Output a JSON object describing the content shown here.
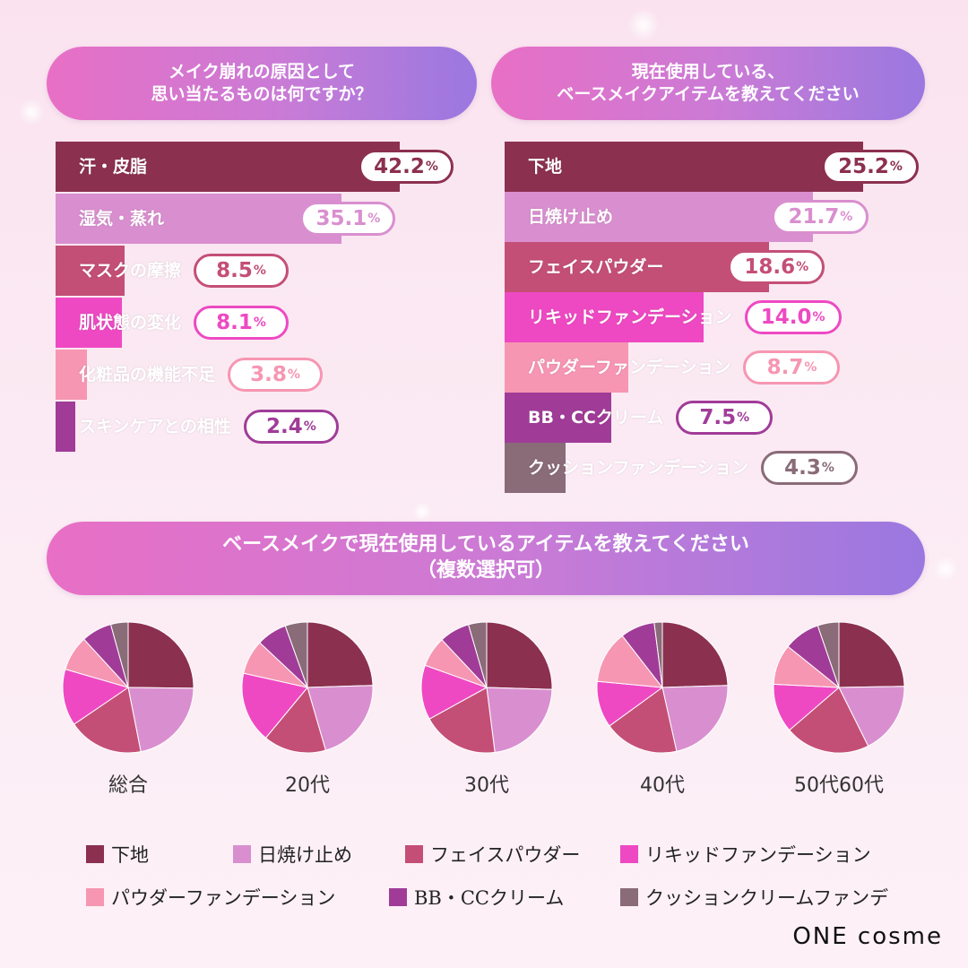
{
  "colors": {
    "下地": "#8c3050",
    "日焼け止め": "#d98fcf",
    "フェイスパウダー": "#c44f76",
    "リキッドファンデーション": "#ee49c3",
    "パウダーファンデーション": "#f696b2",
    "BB・CCクリーム": "#a03c98",
    "クッションファンデーション": "#8a6b78"
  },
  "header_left": {
    "line1": "メイク崩れの原因として",
    "line2": "思い当たるものは何ですか？"
  },
  "header_right": {
    "line1": "現在使用している、",
    "line2": "ベースメイクアイテムを教えてください"
  },
  "header_bottom": {
    "line1": "ベースメイクで現在使用しているアイテムを教えてください",
    "line2": "（複数選択可）"
  },
  "chart_data": [
    {
      "type": "bar",
      "orientation": "horizontal",
      "title": "メイク崩れの原因として思い当たるものは何ですか？",
      "categories": [
        "汗・皮脂",
        "湿気・蒸れ",
        "マスクの摩擦",
        "肌状態の変化",
        "化粧品の機能不足",
        "スキンケアとの相性"
      ],
      "values": [
        42.2,
        35.1,
        8.5,
        8.1,
        3.8,
        2.4
      ],
      "value_labels": [
        "42.2",
        "35.1",
        "8.5",
        "8.1",
        "3.8",
        "2.4"
      ],
      "unit": "%",
      "bar_colors": [
        "#8c3050",
        "#d98fcf",
        "#c44f76",
        "#ee49c3",
        "#f696b2",
        "#a03c98"
      ]
    },
    {
      "type": "bar",
      "orientation": "horizontal",
      "title": "現在使用している、ベースメイクアイテムを教えてください",
      "categories": [
        "下地",
        "日焼け止め",
        "フェイスパウダー",
        "リキッドファンデーション",
        "パウダーファンデーション",
        "BB・CCクリーム",
        "クッションファンデーション"
      ],
      "values": [
        25.2,
        21.7,
        18.6,
        14.0,
        8.7,
        7.5,
        4.3
      ],
      "value_labels": [
        "25.2",
        "21.7",
        "18.6",
        "14.0",
        "8.7",
        "7.5",
        "4.3"
      ],
      "unit": "%",
      "bar_colors": [
        "#8c3050",
        "#d98fcf",
        "#c44f76",
        "#ee49c3",
        "#f696b2",
        "#a03c98",
        "#8a6b78"
      ]
    },
    {
      "type": "pie",
      "title": "ベースメイクで現在使用しているアイテムを教えてください（複数選択可）",
      "series_order": [
        "下地",
        "日焼け止め",
        "フェイスパウダー",
        "リキッドファンデーション",
        "パウダーファンデーション",
        "BB・CCクリーム",
        "クッションファンデーション"
      ],
      "pies": [
        {
          "name": "総合",
          "values": [
            25.2,
            21.7,
            18.6,
            14.0,
            8.7,
            7.5,
            4.3
          ]
        },
        {
          "name": "20代",
          "values": [
            24.5,
            21.0,
            15.5,
            17.5,
            8.5,
            7.5,
            5.5
          ]
        },
        {
          "name": "30代",
          "values": [
            25.5,
            22.5,
            19.0,
            13.5,
            7.5,
            7.5,
            4.5
          ]
        },
        {
          "name": "40代",
          "values": [
            24.5,
            22.0,
            18.5,
            11.5,
            13.0,
            8.5,
            2.0
          ]
        },
        {
          "name": "50代60代",
          "values": [
            23.5,
            17.0,
            20.0,
            11.5,
            9.5,
            8.5,
            5.0
          ]
        }
      ]
    }
  ],
  "legend": [
    "下地",
    "日焼け止め",
    "フェイスパウダー",
    "リキッドファンデーション",
    "パウダーファンデーション",
    "BB・CCクリーム",
    "クッションクリームファンデ"
  ],
  "brand": "ONE cosme"
}
